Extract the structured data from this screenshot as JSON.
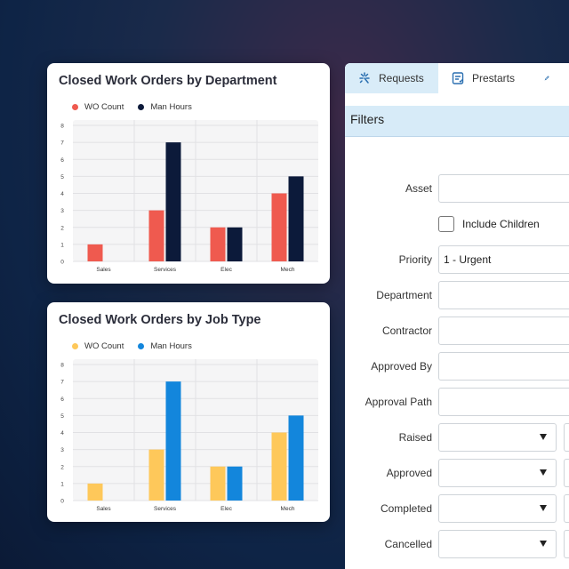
{
  "charts": {
    "department": {
      "title": "Closed Work Orders by Department",
      "legend": [
        {
          "label": "WO Count",
          "color": "#ef5a4f"
        },
        {
          "label": "Man Hours",
          "color": "#0c1a3a"
        }
      ]
    },
    "job_type": {
      "title": "Closed Work Orders by Job Type",
      "legend": [
        {
          "label": "WO Count",
          "color": "#fec85a"
        },
        {
          "label": "Man Hours",
          "color": "#1386dc"
        }
      ]
    }
  },
  "chart_data": [
    {
      "type": "bar",
      "title": "Closed Work Orders by Department",
      "categories": [
        "Sales",
        "Services",
        "Elec",
        "Mech"
      ],
      "series": [
        {
          "name": "WO Count",
          "values": [
            1,
            3,
            2,
            4
          ],
          "color": "#ef5a4f"
        },
        {
          "name": "Man Hours",
          "values": [
            0,
            7,
            2,
            5
          ],
          "color": "#0c1a3a"
        }
      ],
      "yticks": [
        0,
        1,
        2,
        3,
        4,
        5,
        6,
        7,
        8
      ],
      "ylim": [
        0,
        8
      ],
      "grid": true,
      "legend_position": "top-left"
    },
    {
      "type": "bar",
      "title": "Closed Work Orders by Job Type",
      "categories": [
        "Sales",
        "Services",
        "Elec",
        "Mech"
      ],
      "series": [
        {
          "name": "WO Count",
          "values": [
            1,
            3,
            2,
            4
          ],
          "color": "#fec85a"
        },
        {
          "name": "Man Hours",
          "values": [
            0,
            7,
            2,
            5
          ],
          "color": "#1386dc"
        }
      ],
      "yticks": [
        0,
        1,
        2,
        3,
        4,
        5,
        6,
        7,
        8
      ],
      "ylim": [
        0,
        8
      ],
      "grid": true,
      "legend_position": "top-left"
    }
  ],
  "tabs": [
    {
      "label": "Requests",
      "icon": "requests-icon",
      "active": true
    },
    {
      "label": "Prestarts",
      "icon": "prestarts-icon",
      "active": false
    },
    {
      "label": "",
      "icon": "pen-icon",
      "active": false
    }
  ],
  "filters": {
    "title": "Filters",
    "asset_label": "Asset",
    "asset_value": "",
    "include_children_label": "Include Children",
    "priority_label": "Priority",
    "priority_value": "1 - Urgent",
    "department_label": "Department",
    "contractor_label": "Contractor",
    "approved_by_label": "Approved By",
    "approval_path_label": "Approval Path",
    "raised_label": "Raised",
    "approved_label": "Approved",
    "completed_label": "Completed",
    "cancelled_label": "Cancelled"
  }
}
